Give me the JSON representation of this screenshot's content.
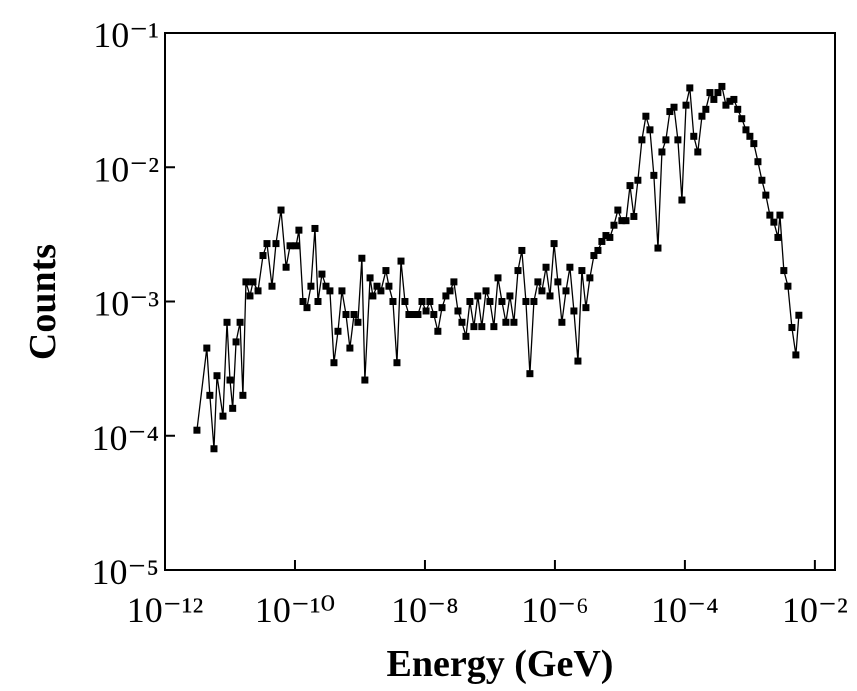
{
  "chart_data": {
    "type": "line",
    "xlabel": "Energy (GeV)",
    "ylabel": "Counts",
    "xlog": true,
    "ylog": true,
    "marker": "square",
    "color": "#000000",
    "xlim": [
      1e-12,
      0.0204
    ],
    "ylim": [
      1e-05,
      0.1
    ],
    "xticks": [
      {
        "value": 1e-12,
        "label": "10⁻¹²"
      },
      {
        "value": 1e-10,
        "label": "10⁻¹⁰"
      },
      {
        "value": 1e-08,
        "label": "10⁻⁸"
      },
      {
        "value": 1e-06,
        "label": "10⁻⁶"
      },
      {
        "value": 0.0001,
        "label": "10⁻⁴"
      },
      {
        "value": 0.01,
        "label": "10⁻²"
      }
    ],
    "yticks": [
      {
        "value": 1e-05,
        "label": "10⁻⁵"
      },
      {
        "value": 0.0001,
        "label": "10⁻⁴"
      },
      {
        "value": 0.001,
        "label": "10⁻³"
      },
      {
        "value": 0.01,
        "label": "10⁻²"
      },
      {
        "value": 0.1,
        "label": "10⁻¹"
      }
    ],
    "x": [
      3.1e-12,
      4.4e-12,
      4.9e-12,
      5.67e-12,
      6.31e-12,
      7.8e-12,
      9e-12,
      1e-11,
      1.1e-11,
      1.24e-11,
      1.43e-11,
      1.58e-11,
      1.76e-11,
      2.03e-11,
      2.26e-11,
      2.7e-11,
      3.22e-11,
      3.71e-11,
      4.43e-11,
      5.1e-11,
      6.1e-11,
      7.3e-11,
      8.4e-11,
      1.04e-10,
      1.15e-10,
      1.33e-10,
      1.53e-10,
      1.76e-10,
      2.03e-10,
      2.26e-10,
      2.6e-10,
      3e-10,
      3.45e-10,
      3.98e-10,
      4.59e-10,
      5.28e-10,
      6.1e-10,
      7e-10,
      8.1e-10,
      9.3e-10,
      1.07e-09,
      1.19e-09,
      1.43e-09,
      1.58e-09,
      1.83e-09,
      2.1e-09,
      2.51e-09,
      2.79e-09,
      3.22e-09,
      3.71e-09,
      4.28e-09,
      4.92e-09,
      5.67e-09,
      6.8e-09,
      7.8e-09,
      9e-09,
      1.04e-08,
      1.19e-08,
      1.37e-08,
      1.58e-08,
      1.83e-08,
      2.1e-08,
      2.43e-08,
      2.79e-08,
      3.22e-08,
      3.71e-08,
      4.28e-08,
      4.92e-08,
      5.67e-08,
      6.5e-08,
      7.5e-08,
      8.7e-08,
      1e-07,
      1.15e-07,
      1.33e-07,
      1.53e-07,
      1.76e-07,
      2.03e-07,
      2.34e-07,
      2.7e-07,
      3.1e-07,
      3.58e-07,
      4.12e-07,
      4.75e-07,
      5.47e-07,
      6.31e-07,
      7.3e-07,
      8.4e-07,
      9.7e-07,
      1.11e-06,
      1.28e-06,
      1.48e-06,
      1.7e-06,
      1.96e-06,
      2.26e-06,
      2.6e-06,
      3e-06,
      3.45e-06,
      3.98e-06,
      4.59e-06,
      5.28e-06,
      6.1e-06,
      7e-06,
      8.1e-06,
      9.3e-06,
      1.07e-05,
      1.24e-05,
      1.43e-05,
      1.64e-05,
      1.89e-05,
      2.18e-05,
      2.51e-05,
      2.9e-05,
      3.33e-05,
      3.85e-05,
      4.43e-05,
      5.1e-05,
      5.87e-05,
      6.8e-05,
      7.8e-05,
      9e-05,
      0.000104,
      0.000119,
      0.000137,
      0.000158,
      0.000183,
      0.00021,
      0.000243,
      0.000279,
      0.000322,
      0.000371,
      0.000428,
      0.000492,
      0.000567,
      0.00065,
      0.00075,
      0.00087,
      0.001,
      0.00115,
      0.00133,
      0.00153,
      0.00176,
      0.00203,
      0.00234,
      0.0027,
      0.0029,
      0.00333,
      0.00385,
      0.00443,
      0.0051,
      0.00567
    ],
    "values": [
      0.00011,
      0.00045,
      0.0002,
      8e-05,
      0.00028,
      0.00014,
      0.0007,
      0.00026,
      0.00016,
      0.0005,
      0.0007,
      0.0002,
      0.0014,
      0.0011,
      0.0014,
      0.0012,
      0.0022,
      0.0027,
      0.0013,
      0.0027,
      0.0048,
      0.0018,
      0.0026,
      0.0026,
      0.0034,
      0.001,
      0.0009,
      0.0013,
      0.0035,
      0.001,
      0.0016,
      0.0013,
      0.0012,
      0.00035,
      0.0006,
      0.0012,
      0.0008,
      0.00045,
      0.0008,
      0.0007,
      0.0021,
      0.00026,
      0.0015,
      0.0011,
      0.0013,
      0.0012,
      0.0017,
      0.0013,
      0.001,
      0.00035,
      0.002,
      0.001,
      0.0008,
      0.0008,
      0.0008,
      0.001,
      0.00085,
      0.001,
      0.0008,
      0.0006,
      0.0009,
      0.0011,
      0.0012,
      0.0014,
      0.00085,
      0.0007,
      0.00055,
      0.001,
      0.00065,
      0.0011,
      0.00065,
      0.0012,
      0.001,
      0.00065,
      0.0015,
      0.001,
      0.0007,
      0.0011,
      0.0007,
      0.0017,
      0.0024,
      0.001,
      0.00029,
      0.001,
      0.0014,
      0.0012,
      0.0018,
      0.0011,
      0.0027,
      0.0014,
      0.0007,
      0.0012,
      0.0018,
      0.00085,
      0.00036,
      0.0017,
      0.0009,
      0.0015,
      0.0022,
      0.0024,
      0.0028,
      0.0031,
      0.003,
      0.0037,
      0.0048,
      0.004,
      0.004,
      0.0073,
      0.0043,
      0.008,
      0.016,
      0.024,
      0.019,
      0.0087,
      0.0025,
      0.013,
      0.016,
      0.026,
      0.028,
      0.016,
      0.0057,
      0.029,
      0.039,
      0.017,
      0.013,
      0.024,
      0.027,
      0.036,
      0.032,
      0.036,
      0.04,
      0.029,
      0.031,
      0.032,
      0.027,
      0.023,
      0.019,
      0.017,
      0.015,
      0.011,
      0.008,
      0.0062,
      0.0044,
      0.0039,
      0.003,
      0.0044,
      0.0017,
      0.0013,
      0.00064,
      0.0004,
      0.00079
    ]
  }
}
